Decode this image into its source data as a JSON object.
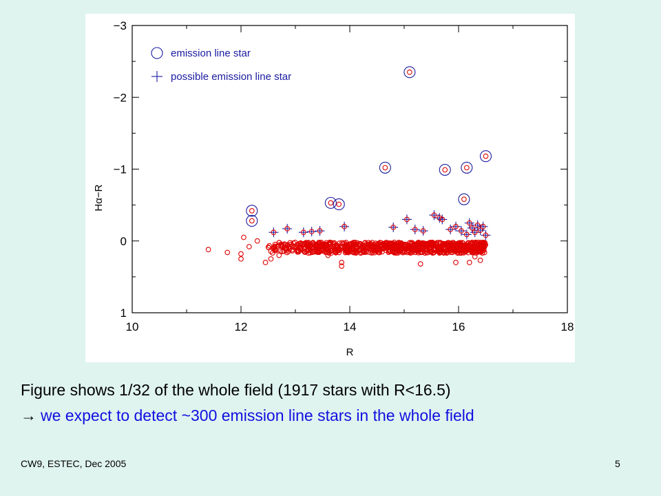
{
  "chart_data": {
    "type": "scatter",
    "xlabel": "R",
    "ylabel": "Hα−R",
    "xlim": [
      10,
      18
    ],
    "ylim": [
      1,
      -3
    ],
    "y_axis_inverted": true,
    "xticks": [
      10,
      12,
      14,
      16,
      18
    ],
    "xtick_labels": [
      "10",
      "12",
      "14",
      "16",
      "18"
    ],
    "yticks": [
      1,
      0,
      -1,
      -2,
      -3
    ],
    "ytick_labels": [
      "1",
      "0",
      "−1",
      "−2",
      "−3"
    ],
    "grid": false,
    "legend_placement": "top-left",
    "legend": [
      {
        "label": "emission line star",
        "marker": "circle"
      },
      {
        "label": "possible emission line star",
        "marker": "plus"
      }
    ],
    "colors": {
      "axes": "#000000",
      "markers": "#1a1aa0",
      "stars": "#e00000"
    },
    "series": [
      {
        "name": "emission line star",
        "marker": "circle",
        "points": [
          [
            12.2,
            -0.42
          ],
          [
            12.2,
            -0.28
          ],
          [
            13.65,
            -0.53
          ],
          [
            13.8,
            -0.51
          ],
          [
            14.65,
            -1.02
          ],
          [
            15.1,
            -2.35
          ],
          [
            15.75,
            -0.99
          ],
          [
            16.15,
            -1.02
          ],
          [
            16.1,
            -0.58
          ],
          [
            16.5,
            -1.18
          ]
        ]
      },
      {
        "name": "possible emission line star",
        "marker": "plus",
        "points": [
          [
            12.6,
            -0.12
          ],
          [
            12.85,
            -0.17
          ],
          [
            13.15,
            -0.12
          ],
          [
            13.3,
            -0.13
          ],
          [
            13.45,
            -0.14
          ],
          [
            13.9,
            -0.2
          ],
          [
            14.8,
            -0.19
          ],
          [
            15.05,
            -0.3
          ],
          [
            15.2,
            -0.16
          ],
          [
            15.35,
            -0.14
          ],
          [
            15.55,
            -0.36
          ],
          [
            15.65,
            -0.32
          ],
          [
            15.7,
            -0.3
          ],
          [
            15.85,
            -0.16
          ],
          [
            15.95,
            -0.2
          ],
          [
            16.05,
            -0.14
          ],
          [
            16.15,
            -0.09
          ],
          [
            16.2,
            -0.25
          ],
          [
            16.25,
            -0.18
          ],
          [
            16.3,
            -0.12
          ],
          [
            16.35,
            -0.22
          ],
          [
            16.4,
            -0.15
          ],
          [
            16.45,
            -0.2
          ],
          [
            16.5,
            -0.08
          ]
        ]
      },
      {
        "name": "",
        "marker": "small-circle",
        "outliers": [
          [
            11.4,
            0.12
          ],
          [
            11.75,
            0.16
          ],
          [
            12.0,
            0.18
          ],
          [
            12.0,
            0.25
          ],
          [
            12.05,
            -0.05
          ],
          [
            12.15,
            0.08
          ],
          [
            12.3,
            0.0
          ],
          [
            12.45,
            0.3
          ],
          [
            12.55,
            0.25
          ],
          [
            12.7,
            0.2
          ],
          [
            13.6,
            0.2
          ],
          [
            13.85,
            0.3
          ],
          [
            13.85,
            0.35
          ],
          [
            15.3,
            0.32
          ],
          [
            15.95,
            0.3
          ],
          [
            16.2,
            0.3
          ],
          [
            16.3,
            0.22
          ],
          [
            16.4,
            0.27
          ]
        ],
        "band_range": {
          "x": [
            12.5,
            16.5
          ],
          "y": [
            0.02,
            0.17
          ]
        },
        "approximate_count": 1900
      }
    ]
  },
  "caption": {
    "line1": "Figure shows 1/32 of the whole field (1917 stars with R<16.5)",
    "line2_arrow": "→",
    "line2": "we expect to detect ~300 emission line stars in the whole field"
  },
  "footer": {
    "left": "CW9, ESTEC, Dec 2005",
    "page": "5"
  }
}
